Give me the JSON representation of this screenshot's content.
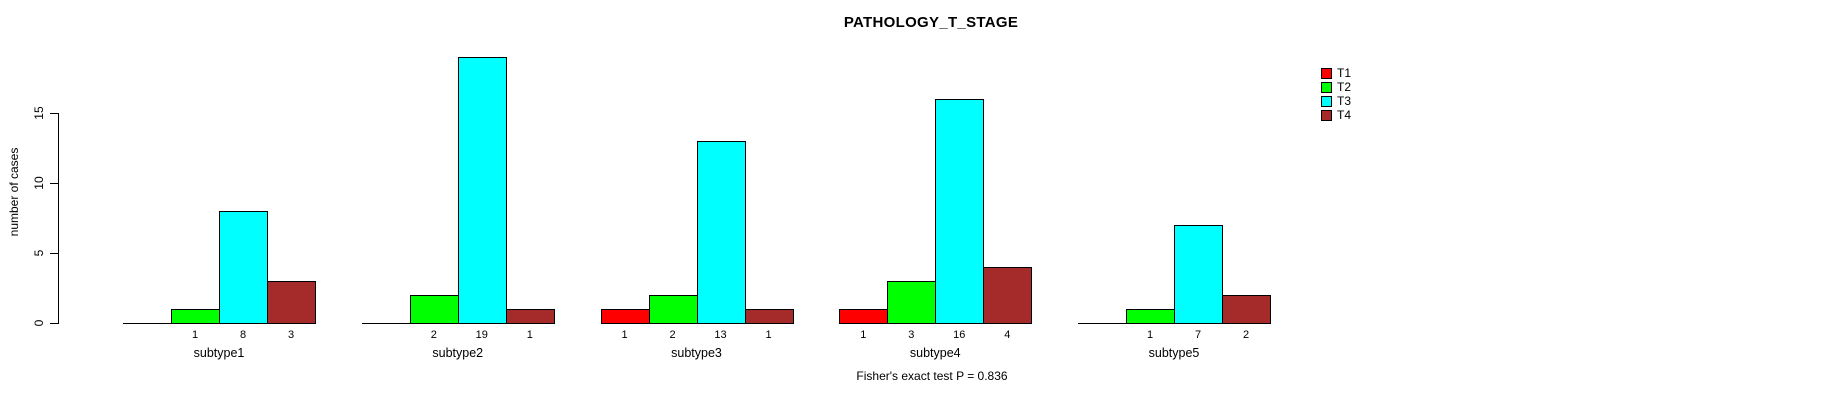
{
  "chart_data": {
    "type": "bar",
    "title": "PATHOLOGY_T_STAGE",
    "ylabel": "number of cases",
    "xlabel": "",
    "categories": [
      "subtype1",
      "subtype2",
      "subtype3",
      "subtype4",
      "subtype5"
    ],
    "series": [
      {
        "name": "T1",
        "color": "#FF0000",
        "values": [
          0,
          0,
          1,
          1,
          0
        ]
      },
      {
        "name": "T2",
        "color": "#00FF00",
        "values": [
          1,
          2,
          2,
          3,
          1
        ]
      },
      {
        "name": "T3",
        "color": "#00FFFF",
        "values": [
          8,
          19,
          13,
          16,
          7
        ]
      },
      {
        "name": "T4",
        "color": "#A52A2A",
        "values": [
          3,
          1,
          1,
          4,
          2
        ]
      }
    ],
    "bar_value_labels_shown": true,
    "yticks": [
      0,
      5,
      10,
      15
    ],
    "ylim": [
      0,
      19
    ],
    "grid": false,
    "legend": {
      "position": "right",
      "entries": [
        "T1",
        "T2",
        "T3",
        "T4"
      ]
    },
    "annotation": "Fisher's exact test P = 0.836"
  },
  "colors": {
    "axis": "#000000",
    "background": "#FFFFFF",
    "text": "#000000"
  }
}
